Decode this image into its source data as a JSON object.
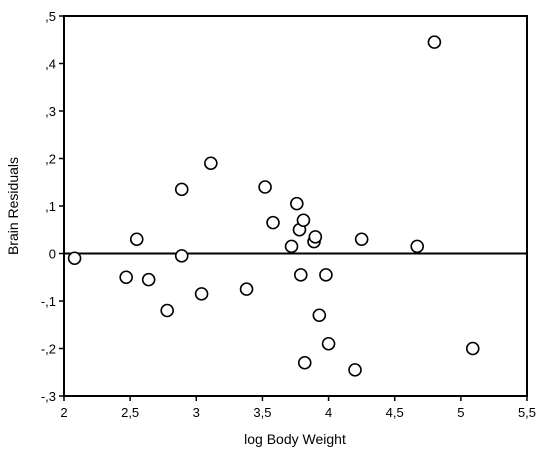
{
  "chart_data": {
    "type": "scatter",
    "title": "",
    "xlabel": "log Body Weight",
    "ylabel": "Brain Residuals",
    "xlim": [
      2,
      5.5
    ],
    "ylim": [
      -0.3,
      0.5
    ],
    "xticks": [
      2,
      2.5,
      3,
      3.5,
      4,
      4.5,
      5,
      5.5
    ],
    "yticks": [
      -0.3,
      -0.2,
      -0.1,
      0,
      0.1,
      0.2,
      0.3,
      0.4,
      0.5
    ],
    "xtick_labels": [
      "2",
      "2,5",
      "3",
      "3,5",
      "4",
      "4,5",
      "5",
      "5,5"
    ],
    "ytick_labels": [
      "-,3",
      "-,2",
      "-,1",
      "0",
      ",1",
      ",2",
      ",3",
      ",4",
      ",5"
    ],
    "reference_line_y": 0,
    "grid": false,
    "marker": "open-circle",
    "points": [
      {
        "x": 2.08,
        "y": -0.01
      },
      {
        "x": 2.47,
        "y": -0.05
      },
      {
        "x": 2.55,
        "y": 0.03
      },
      {
        "x": 2.64,
        "y": -0.055
      },
      {
        "x": 2.78,
        "y": -0.12
      },
      {
        "x": 2.89,
        "y": 0.135
      },
      {
        "x": 2.89,
        "y": -0.005
      },
      {
        "x": 3.04,
        "y": -0.085
      },
      {
        "x": 3.11,
        "y": 0.19
      },
      {
        "x": 3.38,
        "y": -0.075
      },
      {
        "x": 3.52,
        "y": 0.14
      },
      {
        "x": 3.58,
        "y": 0.065
      },
      {
        "x": 3.72,
        "y": 0.015
      },
      {
        "x": 3.76,
        "y": 0.105
      },
      {
        "x": 3.78,
        "y": 0.05
      },
      {
        "x": 3.79,
        "y": -0.045
      },
      {
        "x": 3.81,
        "y": 0.07
      },
      {
        "x": 3.82,
        "y": -0.23
      },
      {
        "x": 3.89,
        "y": 0.025
      },
      {
        "x": 3.9,
        "y": 0.035
      },
      {
        "x": 3.93,
        "y": -0.13
      },
      {
        "x": 3.98,
        "y": -0.045
      },
      {
        "x": 4.0,
        "y": -0.19
      },
      {
        "x": 4.2,
        "y": -0.245
      },
      {
        "x": 4.25,
        "y": 0.03
      },
      {
        "x": 4.67,
        "y": 0.015
      },
      {
        "x": 4.8,
        "y": 0.445
      },
      {
        "x": 5.09,
        "y": -0.2
      }
    ]
  }
}
